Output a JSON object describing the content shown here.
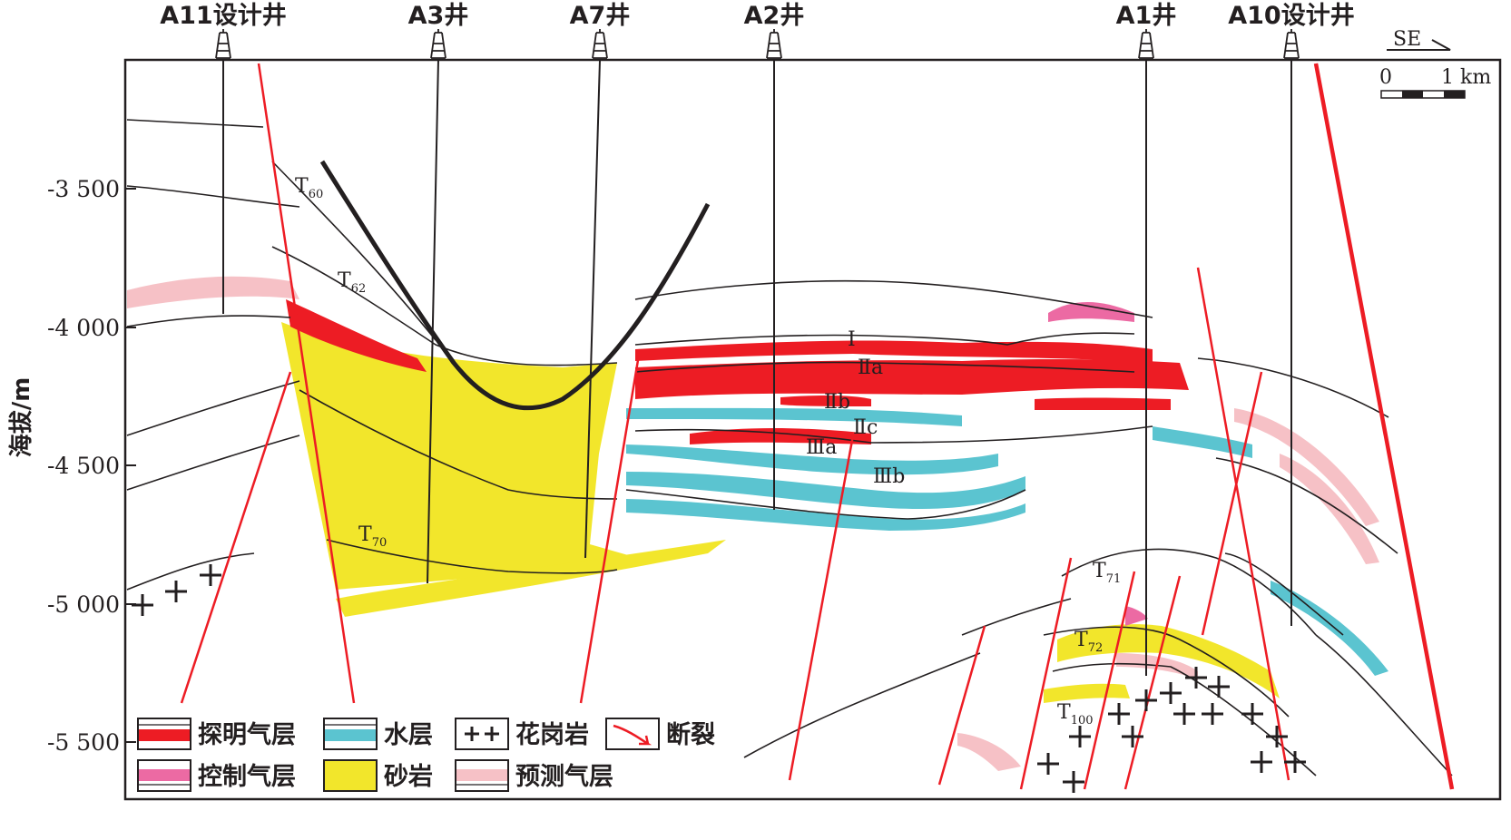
{
  "axis": {
    "ylabel": "海拔/m",
    "ticks": [
      "-3 500",
      "-4 000",
      "-4 500",
      "-5 000",
      "-5 500"
    ]
  },
  "wells": [
    {
      "id": "a11",
      "label": "A11设计井"
    },
    {
      "id": "a3",
      "label": "A3井"
    },
    {
      "id": "a7",
      "label": "A7井"
    },
    {
      "id": "a2",
      "label": "A2井"
    },
    {
      "id": "a1",
      "label": "A1井"
    },
    {
      "id": "a10",
      "label": "A10设计井"
    }
  ],
  "direction": "SE",
  "scalebar": {
    "zero": "0",
    "one": "1 km"
  },
  "horizons": {
    "t60": {
      "main": "T",
      "sub": "60"
    },
    "t62": {
      "main": "T",
      "sub": "62"
    },
    "t70": {
      "main": "T",
      "sub": "70"
    },
    "t71": {
      "main": "T",
      "sub": "71"
    },
    "t72": {
      "main": "T",
      "sub": "72"
    },
    "t100": {
      "main": "T",
      "sub": "100"
    }
  },
  "layers": {
    "i": "Ⅰ",
    "iia": "Ⅱa",
    "iib": "Ⅱb",
    "iic": "Ⅱc",
    "iiia": "Ⅲa",
    "iiib": "Ⅲb"
  },
  "legend": {
    "proven_gas": "探明气层",
    "water": "水层",
    "granite": "花岗岩",
    "fault": "断裂",
    "controlled_gas": "控制气层",
    "sandstone": "砂岩",
    "predicted_gas": "预测气层"
  },
  "colors": {
    "proven_gas": "#ed1c24",
    "controlled_gas": "#ec6aa3",
    "predicted_gas": "#f6c1c6",
    "water": "#5bc4d0",
    "sandstone": "#f2e62b",
    "fault": "#ed1c24"
  }
}
